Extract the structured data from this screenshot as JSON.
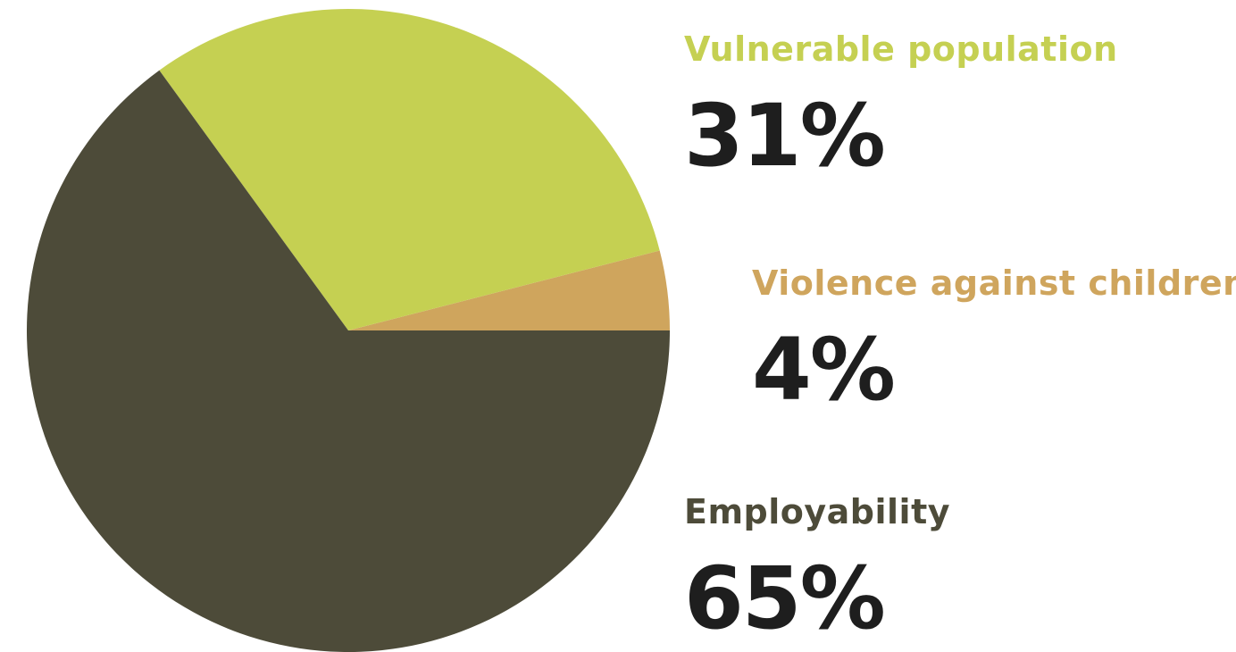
{
  "chart_data": {
    "type": "pie",
    "title": "",
    "slices": [
      {
        "label": "Vulnerable population",
        "value": 31,
        "display": "31%",
        "color": "#c5d052"
      },
      {
        "label": "Violence against children",
        "value": 4,
        "display": "4%",
        "color": "#cfa55d"
      },
      {
        "label": "Employability",
        "value": 65,
        "display": "65%",
        "color": "#4d4b39"
      }
    ],
    "legend_placement": "right"
  }
}
